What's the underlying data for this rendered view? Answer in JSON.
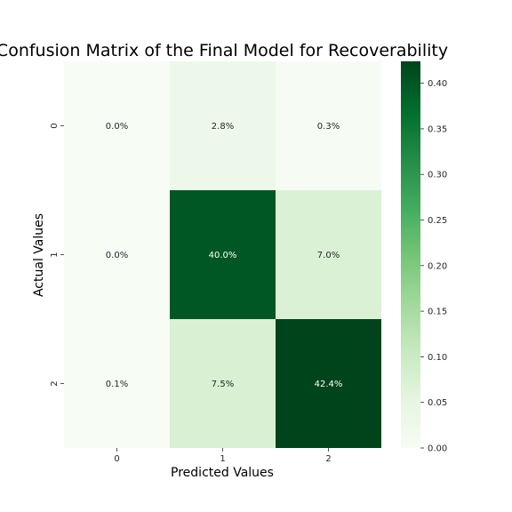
{
  "chart_data": {
    "type": "heatmap",
    "title": "Confusion Matrix of the Final Model  for Recoverability",
    "xlabel": "Predicted Values",
    "ylabel": "Actual Values",
    "x_categories": [
      "0",
      "1",
      "2"
    ],
    "y_categories": [
      "0",
      "1",
      "2"
    ],
    "values": [
      [
        0.0,
        0.028,
        0.003
      ],
      [
        0.0,
        0.4,
        0.07
      ],
      [
        0.001,
        0.075,
        0.424
      ]
    ],
    "annotations": [
      [
        "0.0%",
        "2.8%",
        "0.3%"
      ],
      [
        "0.0%",
        "40.0%",
        "7.0%"
      ],
      [
        "0.1%",
        "7.5%",
        "42.4%"
      ]
    ],
    "colormap": "Greens",
    "colorbar": {
      "vmin": 0.0,
      "vmax": 0.424,
      "ticks": [
        "0.00",
        "0.05",
        "0.10",
        "0.15",
        "0.20",
        "0.25",
        "0.30",
        "0.35",
        "0.40"
      ]
    }
  }
}
